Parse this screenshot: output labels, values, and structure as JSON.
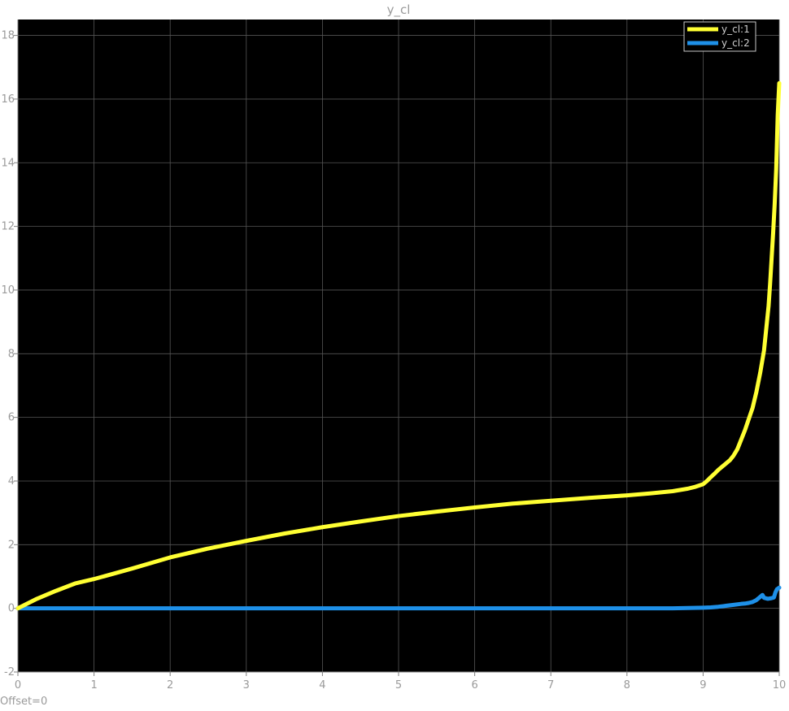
{
  "chart_data": {
    "type": "line",
    "title": "y_cl",
    "xlabel": "",
    "ylabel": "",
    "xlim": [
      0,
      10
    ],
    "ylim": [
      -2,
      18.5
    ],
    "xticks": [
      "0",
      "1",
      "2",
      "3",
      "4",
      "5",
      "6",
      "7",
      "8",
      "9",
      "10"
    ],
    "yticks": [
      "-2",
      "0",
      "2",
      "4",
      "6",
      "8",
      "10",
      "12",
      "14",
      "16",
      "18"
    ],
    "grid": true,
    "legend_position": "top-right",
    "footer_text": "Offset=0",
    "colors": {
      "background": "#000000",
      "grid": "#555555",
      "axis": "#808080",
      "text": "#9a9a9a"
    },
    "series": [
      {
        "name": "y_cl:1",
        "color": "#ffff33",
        "x": [
          0,
          0.25,
          0.5,
          0.75,
          1.0,
          1.5,
          2.0,
          2.5,
          3.0,
          3.5,
          4.0,
          4.5,
          5.0,
          5.5,
          6.0,
          6.5,
          7.0,
          7.5,
          8.0,
          8.3,
          8.6,
          8.8,
          8.9,
          9.0,
          9.05,
          9.1,
          9.15,
          9.2,
          9.25,
          9.3,
          9.35,
          9.4,
          9.45,
          9.5,
          9.55,
          9.6,
          9.65,
          9.7,
          9.75,
          9.8,
          9.83,
          9.86,
          9.88,
          9.9,
          9.92,
          9.94,
          9.96,
          9.98,
          10.0
        ],
        "y": [
          0,
          0.3,
          0.55,
          0.78,
          0.92,
          1.25,
          1.6,
          1.88,
          2.12,
          2.35,
          2.55,
          2.73,
          2.9,
          3.04,
          3.17,
          3.29,
          3.38,
          3.47,
          3.55,
          3.61,
          3.68,
          3.76,
          3.82,
          3.9,
          4.0,
          4.12,
          4.23,
          4.35,
          4.45,
          4.55,
          4.65,
          4.8,
          5.0,
          5.3,
          5.6,
          5.95,
          6.3,
          6.8,
          7.4,
          8.1,
          8.8,
          9.5,
          10.2,
          11.0,
          11.8,
          12.7,
          13.8,
          15.5,
          16.5
        ]
      },
      {
        "name": "y_cl:2",
        "color": "#1e90e8",
        "x": [
          0,
          1,
          2,
          3,
          4,
          5,
          6,
          7,
          8,
          8.6,
          8.8,
          9.0,
          9.1,
          9.2,
          9.3,
          9.4,
          9.5,
          9.55,
          9.6,
          9.65,
          9.7,
          9.75,
          9.78,
          9.8,
          9.85,
          9.9,
          9.93,
          9.95,
          9.97,
          10.0
        ],
        "y": [
          0,
          0,
          0,
          0,
          0,
          0,
          0,
          0,
          0,
          0.0,
          0.01,
          0.02,
          0.03,
          0.05,
          0.08,
          0.11,
          0.14,
          0.15,
          0.17,
          0.2,
          0.26,
          0.36,
          0.42,
          0.33,
          0.3,
          0.32,
          0.34,
          0.5,
          0.6,
          0.65
        ]
      }
    ]
  }
}
